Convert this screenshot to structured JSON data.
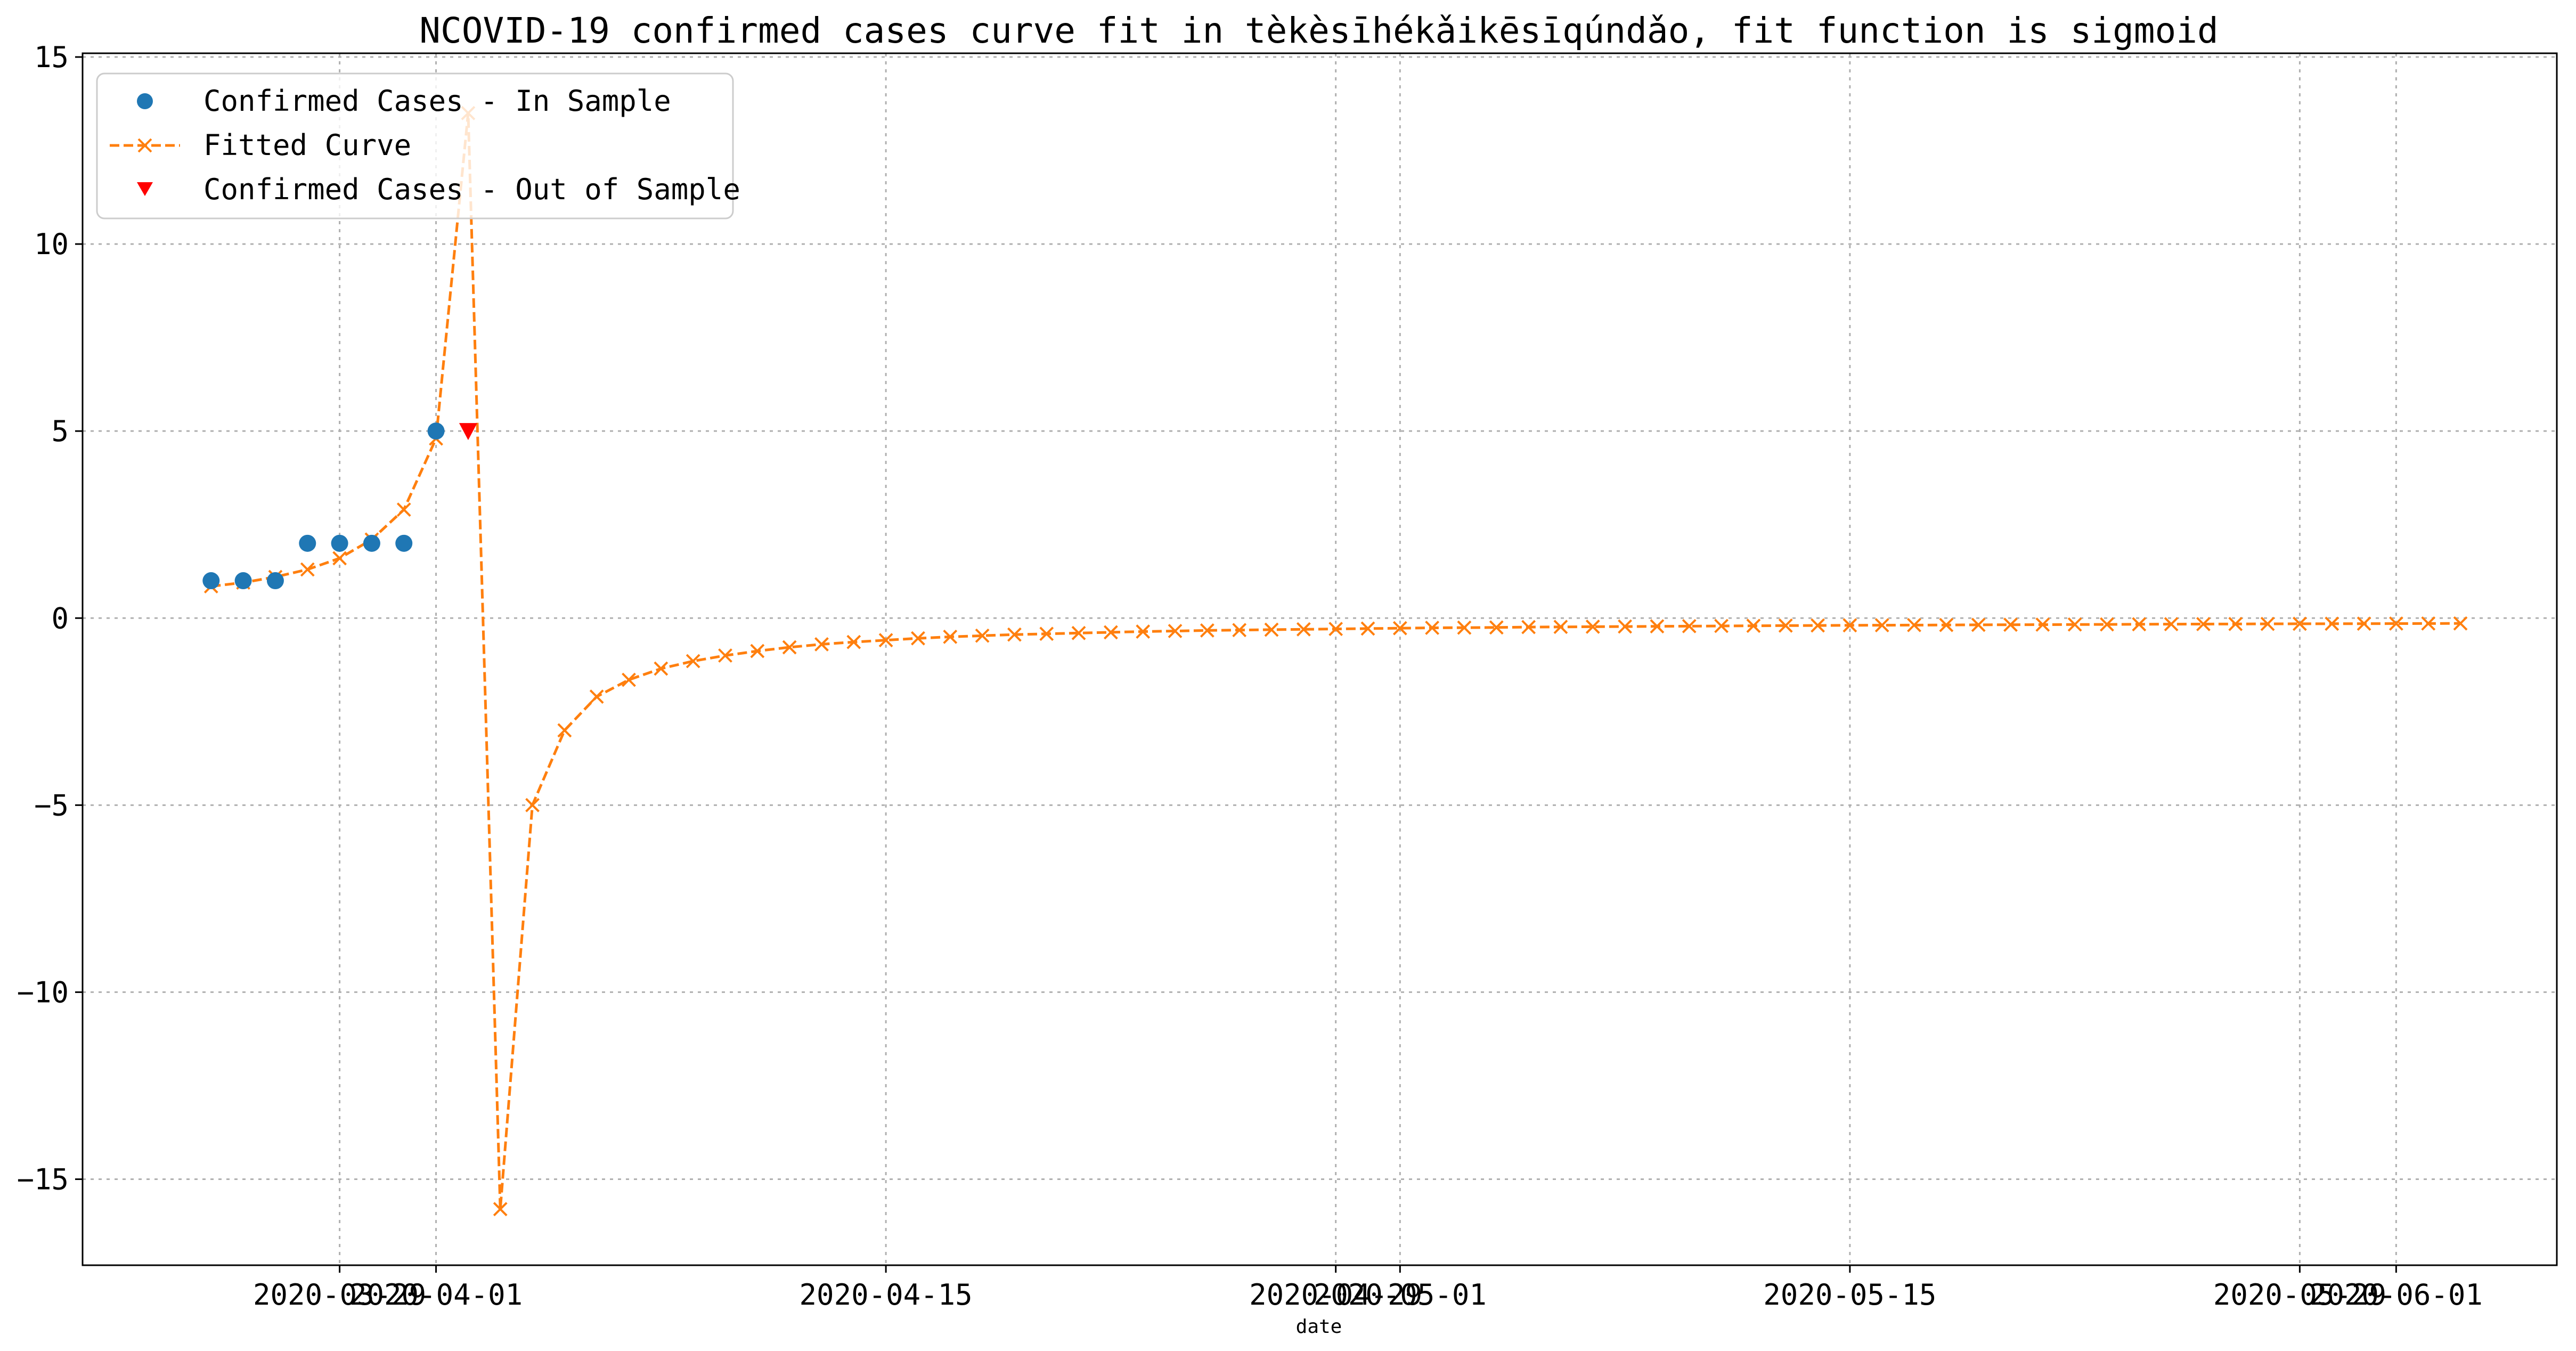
{
  "chart_data": {
    "type": "line",
    "title": "NCOVID-19 confirmed cases curve fit in tèkèsīhékǎikēsīqúndǎo, fit function is sigmoid",
    "xlabel": "date",
    "ylabel": "",
    "ylim": [
      -17.3,
      15.1
    ],
    "xlim": [
      "2020-03-21",
      "2020-06-06"
    ],
    "grid": true,
    "legend_position": "upper-left",
    "y_ticks": [
      -15,
      -10,
      -5,
      0,
      5,
      10,
      15
    ],
    "y_tick_labels": [
      "−15",
      "−10",
      "−5",
      "0",
      "5",
      "10",
      "15"
    ],
    "x_ticks": [
      "2020-03-29",
      "2020-04-01",
      "2020-04-15",
      "2020-04-29",
      "2020-05-01",
      "2020-05-15",
      "2020-05-29",
      "2020-06-01"
    ],
    "x_tick_labels": [
      "2020-03-29",
      "2020-04-01",
      "2020-04-15",
      "2020-04-29",
      "2020-05-01",
      "2020-05-15",
      "2020-05-29",
      "2020-06-01"
    ],
    "series": [
      {
        "name": "Confirmed Cases - In Sample",
        "kind": "scatter",
        "marker": "circle",
        "color": "#1f77b4",
        "x": [
          "2020-03-25",
          "2020-03-26",
          "2020-03-27",
          "2020-03-28",
          "2020-03-29",
          "2020-03-30",
          "2020-03-31",
          "2020-04-01"
        ],
        "y": [
          1,
          1,
          1,
          2,
          2,
          2,
          2,
          5
        ]
      },
      {
        "name": "Fitted Curve",
        "kind": "line",
        "marker": "x",
        "linestyle": "dashed",
        "color": "#ff7f0e",
        "start_date": "2020-03-25",
        "y": [
          0.85,
          0.95,
          1.1,
          1.3,
          1.6,
          2.1,
          2.9,
          4.8,
          13.5,
          -15.8,
          -5.0,
          -3.0,
          -2.1,
          -1.65,
          -1.35,
          -1.15,
          -1.0,
          -0.88,
          -0.78,
          -0.7,
          -0.64,
          -0.59,
          -0.54,
          -0.5,
          -0.47,
          -0.44,
          -0.42,
          -0.4,
          -0.38,
          -0.36,
          -0.345,
          -0.33,
          -0.32,
          -0.31,
          -0.3,
          -0.29,
          -0.28,
          -0.27,
          -0.26,
          -0.255,
          -0.25,
          -0.24,
          -0.235,
          -0.23,
          -0.225,
          -0.22,
          -0.215,
          -0.21,
          -0.205,
          -0.2,
          -0.197,
          -0.193,
          -0.19,
          -0.187,
          -0.184,
          -0.18,
          -0.177,
          -0.174,
          -0.171,
          -0.168,
          -0.165,
          -0.162,
          -0.16,
          -0.157,
          -0.155,
          -0.152,
          -0.15,
          -0.148,
          -0.146,
          -0.144,
          -0.142
        ]
      },
      {
        "name": "Confirmed Cases - Out of Sample",
        "kind": "scatter",
        "marker": "triangle-down",
        "color": "#ff0000",
        "x": [
          "2020-04-02"
        ],
        "y": [
          5
        ]
      }
    ]
  }
}
